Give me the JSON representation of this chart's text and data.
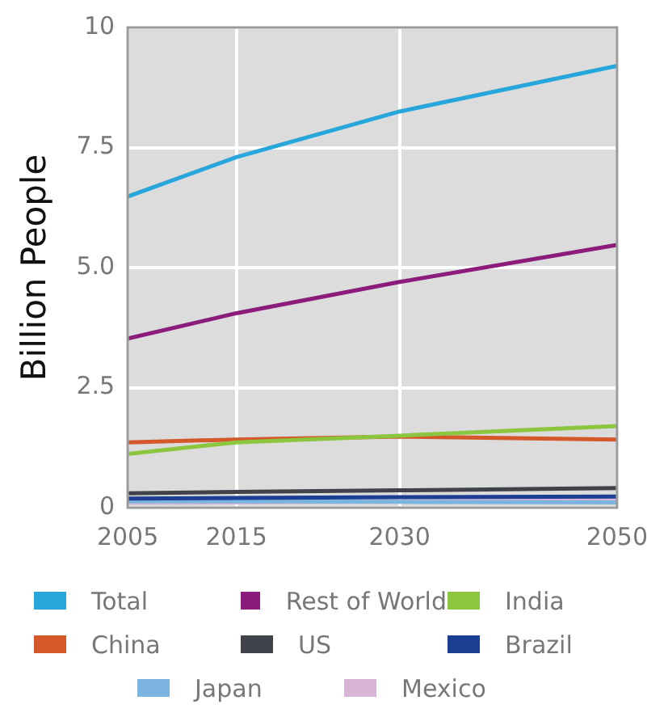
{
  "chart_data": {
    "type": "line",
    "ylabel": "Billion People",
    "x": [
      2005,
      2015,
      2030,
      2050
    ],
    "xlim": [
      2005,
      2050
    ],
    "xticks": [
      2005,
      2015,
      2030,
      2050
    ],
    "ylim": [
      0,
      10
    ],
    "yticks": [
      0,
      {
        "value": 2.5,
        "label": "2.5"
      },
      {
        "value": 5,
        "label": "5.0"
      },
      {
        "value": 7.5,
        "label": "7.5"
      },
      10
    ],
    "grid": true,
    "legend": "bottom",
    "marker": "none",
    "line_style": "solid",
    "series": [
      {
        "name": "Total",
        "color": "#27a6dc",
        "values": [
          6.48,
          7.3,
          8.25,
          9.2
        ]
      },
      {
        "name": "Rest of World",
        "color": "#8b1c7c",
        "values": [
          3.52,
          4.05,
          4.7,
          5.47
        ]
      },
      {
        "name": "India",
        "color": "#8cc63f",
        "values": [
          1.12,
          1.36,
          1.5,
          1.7
        ]
      },
      {
        "name": "China",
        "color": "#d4582a",
        "values": [
          1.36,
          1.42,
          1.48,
          1.42
        ]
      },
      {
        "name": "US",
        "color": "#404349",
        "values": [
          0.3,
          0.33,
          0.36,
          0.41
        ]
      },
      {
        "name": "Brazil",
        "color": "#1c3f94",
        "values": [
          0.19,
          0.2,
          0.22,
          0.23
        ]
      },
      {
        "name": "Japan",
        "color": "#7cb4e0",
        "values": [
          0.13,
          0.13,
          0.12,
          0.11
        ]
      },
      {
        "name": "Mexico",
        "color": "#d8b4d6",
        "values": [
          0.1,
          0.11,
          0.13,
          0.15
        ]
      }
    ]
  }
}
